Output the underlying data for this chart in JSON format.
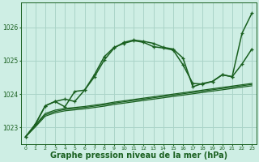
{
  "bg_color": "#ceeee4",
  "grid_color": "#aad4c8",
  "line_color": "#1a6020",
  "xlabel": "Graphe pression niveau de la mer (hPa)",
  "xlabel_fontsize": 7,
  "ylim": [
    1022.5,
    1026.75
  ],
  "yticks": [
    1023,
    1024,
    1025,
    1026
  ],
  "xticks": [
    0,
    1,
    2,
    3,
    4,
    5,
    6,
    7,
    8,
    9,
    10,
    11,
    12,
    13,
    14,
    15,
    16,
    17,
    18,
    19,
    20,
    21,
    22,
    23
  ],
  "series": [
    {
      "x": [
        0,
        1,
        2,
        3,
        4,
        5,
        6,
        7,
        8,
        9,
        10,
        11,
        12,
        13,
        14,
        15,
        16,
        17,
        18,
        19,
        20,
        21,
        22,
        23
      ],
      "y": [
        1022.72,
        1023.08,
        1023.42,
        1023.52,
        1023.57,
        1023.6,
        1023.63,
        1023.67,
        1023.71,
        1023.76,
        1023.8,
        1023.84,
        1023.88,
        1023.92,
        1023.96,
        1024.0,
        1024.04,
        1024.08,
        1024.12,
        1024.16,
        1024.2,
        1024.24,
        1024.28,
        1024.32
      ],
      "has_marker": false,
      "linewidth": 0.9
    },
    {
      "x": [
        0,
        1,
        2,
        3,
        4,
        5,
        6,
        7,
        8,
        9,
        10,
        11,
        12,
        13,
        14,
        15,
        16,
        17,
        18,
        19,
        20,
        21,
        22,
        23
      ],
      "y": [
        1022.72,
        1023.05,
        1023.38,
        1023.48,
        1023.54,
        1023.57,
        1023.6,
        1023.64,
        1023.68,
        1023.73,
        1023.77,
        1023.81,
        1023.85,
        1023.89,
        1023.93,
        1023.97,
        1024.01,
        1024.05,
        1024.09,
        1024.13,
        1024.17,
        1024.21,
        1024.25,
        1024.29
      ],
      "has_marker": false,
      "linewidth": 0.9
    },
    {
      "x": [
        0,
        1,
        2,
        3,
        4,
        5,
        6,
        7,
        8,
        9,
        10,
        11,
        12,
        13,
        14,
        15,
        16,
        17,
        18,
        19,
        20,
        21,
        22,
        23
      ],
      "y": [
        1022.72,
        1023.02,
        1023.34,
        1023.44,
        1023.5,
        1023.53,
        1023.56,
        1023.6,
        1023.64,
        1023.69,
        1023.73,
        1023.77,
        1023.81,
        1023.85,
        1023.89,
        1023.93,
        1023.97,
        1024.01,
        1024.05,
        1024.09,
        1024.13,
        1024.17,
        1024.21,
        1024.25
      ],
      "has_marker": false,
      "linewidth": 0.9
    },
    {
      "x": [
        0,
        1,
        2,
        3,
        4,
        5,
        6,
        7,
        8,
        9,
        10,
        11,
        12,
        13,
        14,
        15,
        16,
        17,
        18,
        19,
        20,
        21,
        22,
        23
      ],
      "y": [
        1022.72,
        1023.1,
        1023.65,
        1023.78,
        1023.62,
        1024.08,
        1024.12,
        1024.58,
        1025.12,
        1025.4,
        1025.52,
        1025.6,
        1025.55,
        1025.42,
        1025.38,
        1025.32,
        1024.88,
        1024.32,
        1024.3,
        1024.38,
        1024.58,
        1024.52,
        1024.9,
        1025.35
      ],
      "has_marker": true,
      "linewidth": 1.1
    },
    {
      "x": [
        0,
        1,
        2,
        3,
        4,
        5,
        6,
        7,
        8,
        9,
        10,
        11,
        12,
        13,
        14,
        15,
        16,
        17,
        18,
        19,
        20,
        21,
        22,
        23
      ],
      "y": [
        1022.72,
        1023.1,
        1023.65,
        1023.78,
        1023.85,
        1023.78,
        1024.12,
        1024.52,
        1025.02,
        1025.38,
        1025.55,
        1025.62,
        1025.58,
        1025.52,
        1025.4,
        1025.35,
        1025.08,
        1024.22,
        1024.32,
        1024.38,
        1024.58,
        1024.52,
        1025.82,
        1026.42
      ],
      "has_marker": true,
      "linewidth": 1.1
    }
  ]
}
